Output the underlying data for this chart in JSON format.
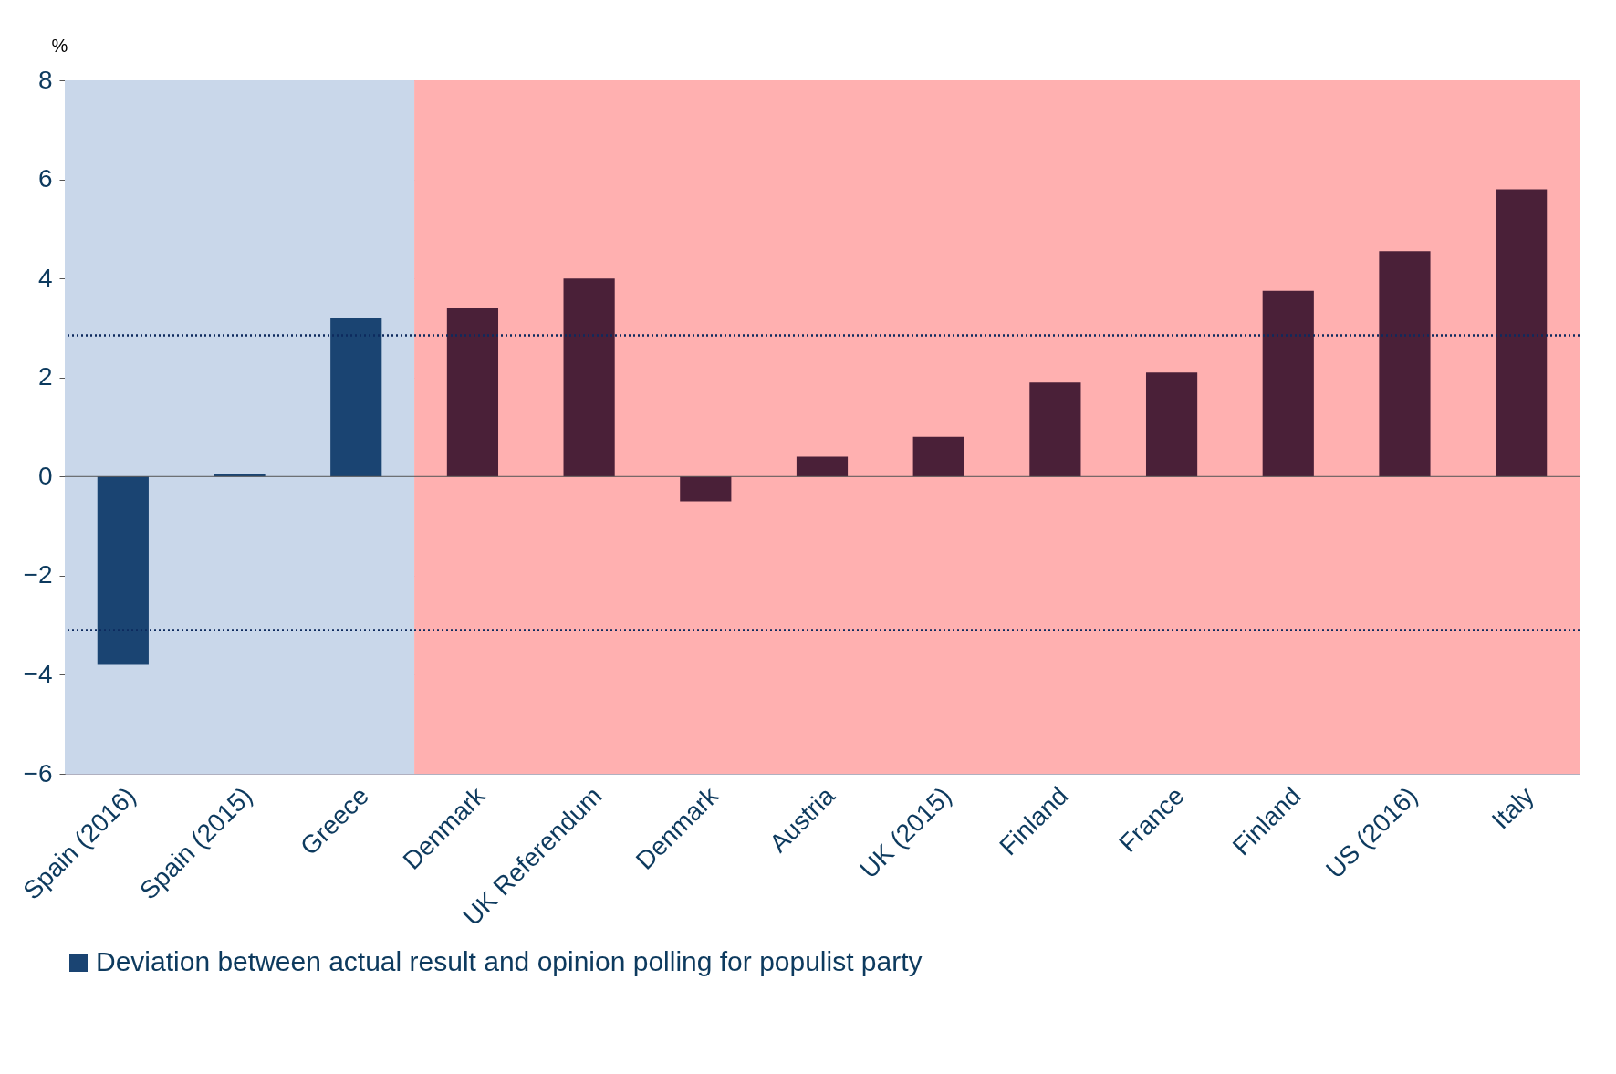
{
  "chart_data": {
    "type": "bar",
    "ylabel": "%",
    "categories": [
      "Spain (2016)",
      "Spain (2015)",
      "Greece",
      "Denmark",
      "UK Referendum",
      "Denmark",
      "Austria",
      "UK (2015)",
      "Finland",
      "France",
      "Finland",
      "US (2016)",
      "Italy"
    ],
    "series": [
      {
        "name": "Deviation between actual result and opinion polling for populist party",
        "color": "#1a4472",
        "values": [
          -3.8,
          0.05,
          3.2,
          3.4,
          4.0,
          -0.5,
          0.4,
          0.8,
          1.9,
          2.1,
          3.75,
          4.55,
          5.8
        ],
        "colors": [
          "#1a4472",
          "#1a4472",
          "#1a4472",
          "#4a2038",
          "#4a2038",
          "#4a2038",
          "#4a2038",
          "#4a2038",
          "#4a2038",
          "#4a2038",
          "#4a2038",
          "#4a2038",
          "#4a2038"
        ]
      }
    ],
    "ylim": [
      -6,
      8
    ],
    "yticks": [
      -6,
      -4,
      -2,
      0,
      2,
      4,
      6,
      8
    ],
    "grid": "y",
    "legend": "bottom",
    "ref_lines": [
      {
        "axis": "y",
        "value": 2.85,
        "color": "#0d2a5e",
        "line_style": "dotted"
      },
      {
        "axis": "y",
        "value": -3.1,
        "color": "#0d2a5e",
        "line_style": "dotted"
      }
    ],
    "bands": [
      {
        "axis": "x",
        "from": "Spain (2016)",
        "to": "Greece",
        "color": "#c9d7ea"
      },
      {
        "axis": "x",
        "from": "Denmark",
        "to": "Italy",
        "color": "#ffb0b0"
      }
    ]
  }
}
